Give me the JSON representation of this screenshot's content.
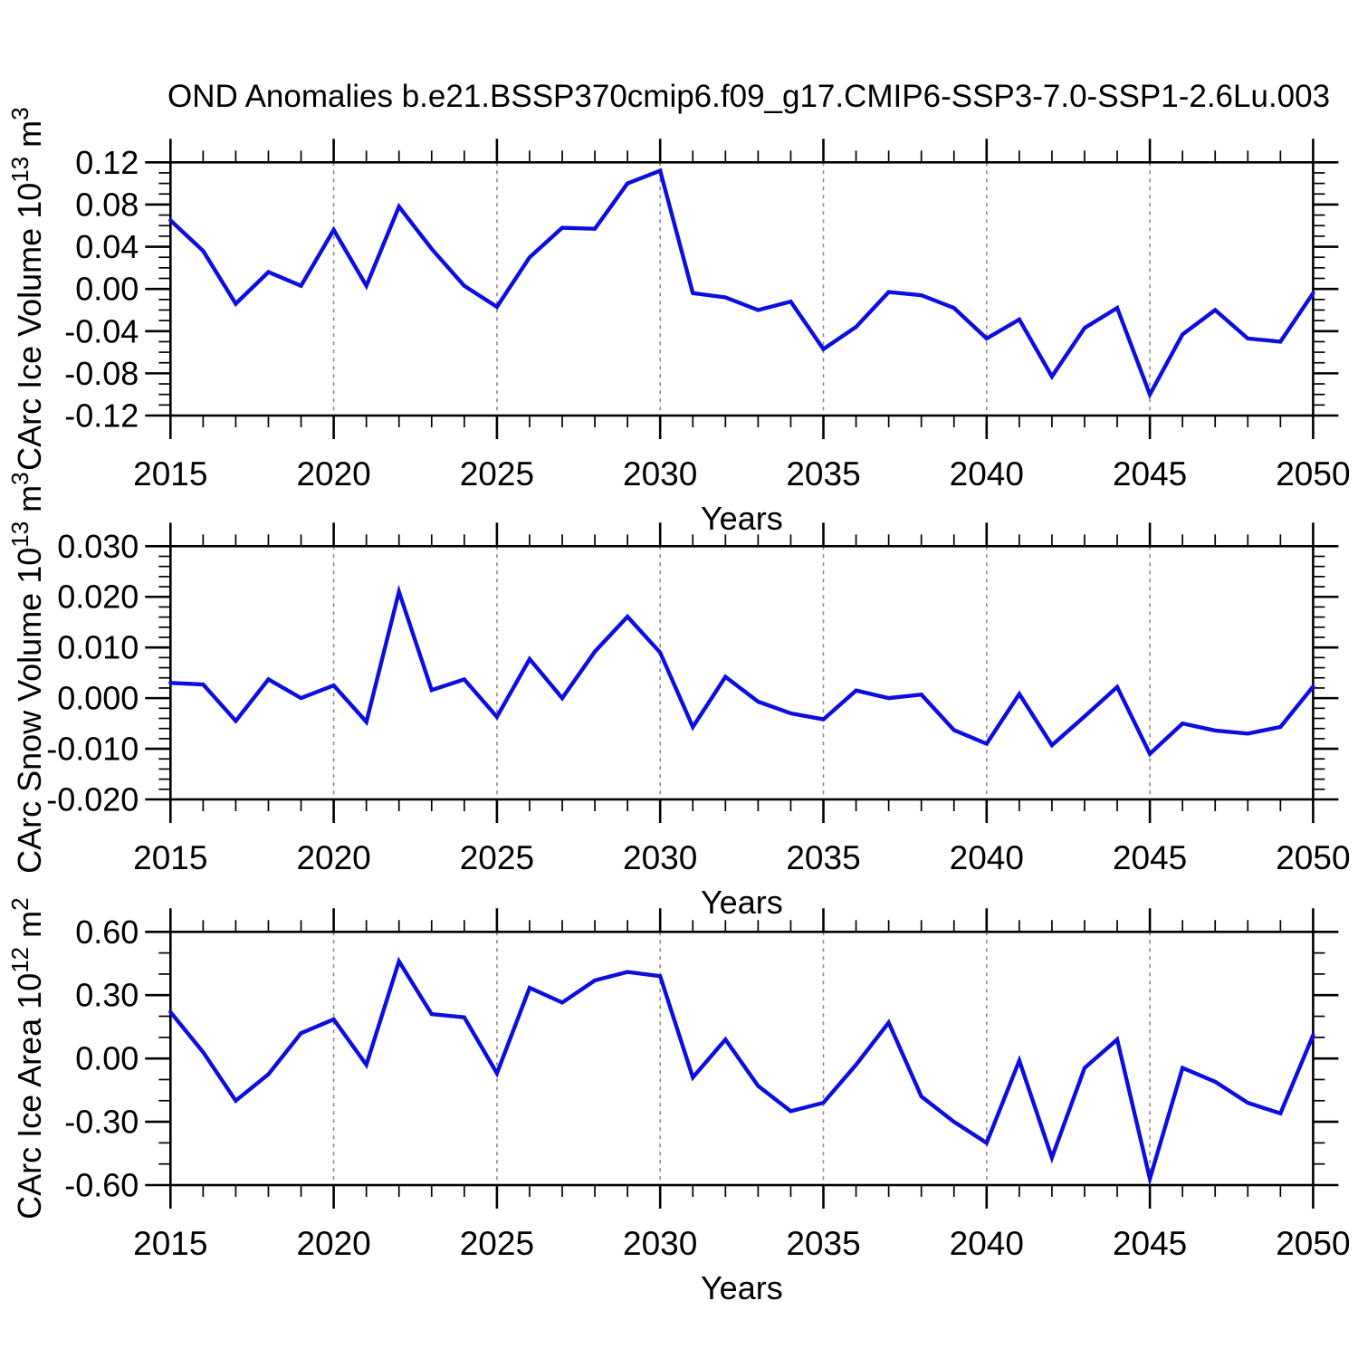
{
  "title": "OND Anomalies b.e21.BSSP370cmip6.f09_g17.CMIP6-SSP3-7.0-SSP1-2.6Lu.003",
  "colors": {
    "line": "#0d0de0",
    "frame": "#000000",
    "grid": "#8c8c8c",
    "background": "#ffffff"
  },
  "x_axis": {
    "label": "Years",
    "tick_labels": [
      "2015",
      "2020",
      "2025",
      "2030",
      "2035",
      "2040",
      "2045",
      "2050"
    ],
    "minor_step_years": 1,
    "grid_years": [
      2020,
      2025,
      2030,
      2035,
      2040,
      2045
    ],
    "range": [
      2015,
      2050
    ]
  },
  "chart_data": [
    {
      "type": "line",
      "name": "carc-ice-volume",
      "ylabel_parts": [
        {
          "text": "CArc Ice Volume 10",
          "sup": false
        },
        {
          "text": "13",
          "sup": true
        },
        {
          "text": " m",
          "sup": false
        },
        {
          "text": "3",
          "sup": true
        }
      ],
      "xlabel": "Years",
      "ylim": [
        -0.12,
        0.12
      ],
      "ytick_major": 0.04,
      "ytick_minor": 0.01,
      "ytick_decimals": 2,
      "ytick_labels": [
        "0.12",
        "0.08",
        "0.04",
        "0.00",
        "-0.04",
        "-0.08",
        "-0.12"
      ],
      "x": [
        2015,
        2016,
        2017,
        2018,
        2019,
        2020,
        2021,
        2022,
        2023,
        2024,
        2025,
        2026,
        2027,
        2028,
        2029,
        2030,
        2031,
        2032,
        2033,
        2034,
        2035,
        2036,
        2037,
        2038,
        2039,
        2040,
        2041,
        2042,
        2043,
        2044,
        2045,
        2046,
        2047,
        2048,
        2049,
        2050
      ],
      "values": [
        0.065,
        0.036,
        -0.014,
        0.016,
        0.003,
        0.056,
        0.003,
        0.078,
        0.038,
        0.003,
        -0.017,
        0.03,
        0.058,
        0.057,
        0.1,
        0.112,
        -0.004,
        -0.008,
        -0.02,
        -0.012,
        -0.057,
        -0.036,
        -0.003,
        -0.006,
        -0.018,
        -0.047,
        -0.029,
        -0.083,
        -0.037,
        -0.018,
        -0.1,
        -0.043,
        -0.02,
        -0.047,
        -0.05,
        -0.004
      ]
    },
    {
      "type": "line",
      "name": "carc-snow-volume",
      "ylabel_parts": [
        {
          "text": "CArc Snow Volume 10",
          "sup": false
        },
        {
          "text": "13",
          "sup": true
        },
        {
          "text": " m",
          "sup": false
        },
        {
          "text": "3",
          "sup": true
        }
      ],
      "xlabel": "Years",
      "ylim": [
        -0.02,
        0.03
      ],
      "ytick_major": 0.01,
      "ytick_minor": 0.002,
      "ytick_decimals": 3,
      "ytick_labels": [
        "0.030",
        "0.020",
        "0.010",
        "0.000",
        "-0.010",
        "-0.020"
      ],
      "x": [
        2015,
        2016,
        2017,
        2018,
        2019,
        2020,
        2021,
        2022,
        2023,
        2024,
        2025,
        2026,
        2027,
        2028,
        2029,
        2030,
        2031,
        2032,
        2033,
        2034,
        2035,
        2036,
        2037,
        2038,
        2039,
        2040,
        2041,
        2042,
        2043,
        2044,
        2045,
        2046,
        2047,
        2048,
        2049,
        2050
      ],
      "values": [
        0.003,
        0.0027,
        -0.0045,
        0.0037,
        0.0,
        0.0025,
        -0.0047,
        0.021,
        0.0016,
        0.0037,
        -0.0037,
        0.0077,
        0.0,
        0.0092,
        0.0161,
        0.009,
        -0.0057,
        0.0042,
        -0.0007,
        -0.003,
        -0.0042,
        0.0015,
        0.0,
        0.0007,
        -0.0063,
        -0.009,
        0.0008,
        -0.0093,
        -0.0036,
        0.0022,
        -0.011,
        -0.005,
        -0.0064,
        -0.007,
        -0.0057,
        0.0023
      ]
    },
    {
      "type": "line",
      "name": "carc-ice-area",
      "ylabel_parts": [
        {
          "text": "CArc Ice Area 10",
          "sup": false
        },
        {
          "text": "12",
          "sup": true
        },
        {
          "text": " m",
          "sup": false
        },
        {
          "text": "2",
          "sup": true
        }
      ],
      "xlabel": "Years",
      "ylim": [
        -0.6,
        0.6
      ],
      "ytick_major": 0.3,
      "ytick_minor": 0.1,
      "ytick_decimals": 2,
      "ytick_labels": [
        "0.60",
        "0.30",
        "0.00",
        "-0.30",
        "-0.60"
      ],
      "x": [
        2015,
        2016,
        2017,
        2018,
        2019,
        2020,
        2021,
        2022,
        2023,
        2024,
        2025,
        2026,
        2027,
        2028,
        2029,
        2030,
        2031,
        2032,
        2033,
        2034,
        2035,
        2036,
        2037,
        2038,
        2039,
        2040,
        2041,
        2042,
        2043,
        2044,
        2045,
        2046,
        2047,
        2048,
        2049,
        2050
      ],
      "values": [
        0.22,
        0.03,
        -0.2,
        -0.075,
        0.12,
        0.185,
        -0.03,
        0.46,
        0.21,
        0.195,
        -0.07,
        0.335,
        0.265,
        0.37,
        0.41,
        0.39,
        -0.09,
        0.09,
        -0.13,
        -0.25,
        -0.21,
        -0.03,
        0.17,
        -0.18,
        -0.3,
        -0.4,
        -0.01,
        -0.47,
        -0.045,
        0.09,
        -0.57,
        -0.045,
        -0.11,
        -0.21,
        -0.26,
        0.11
      ]
    }
  ]
}
